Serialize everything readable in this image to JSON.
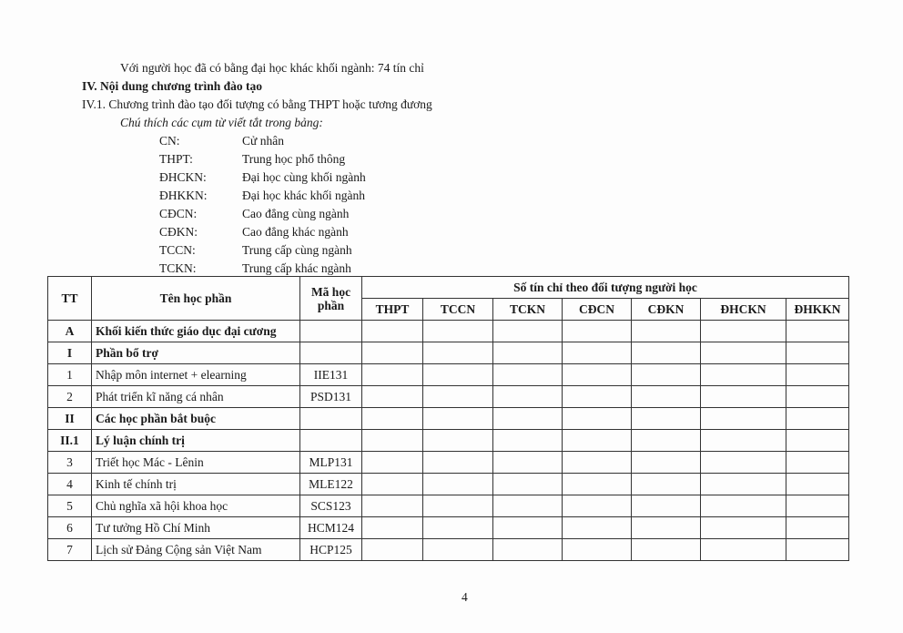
{
  "intro_line": "Với người học đã có bằng đại học khác khối ngành: 74 tín chỉ",
  "section_title": "IV.  Nội dung chương trình đào tạo",
  "subsection_title": "IV.1. Chương trình đào tạo đối tượng có bằng THPT hoặc tương đương",
  "legend_title": "Chú thích các cụm từ viết tắt trong bảng:",
  "legend": [
    {
      "abbr": "CN:",
      "meaning": "Cử nhân"
    },
    {
      "abbr": "THPT:",
      "meaning": "Trung học phổ thông"
    },
    {
      "abbr": "ĐHCKN:",
      "meaning": "Đại học cùng khối ngành"
    },
    {
      "abbr": "ĐHKKN:",
      "meaning": "Đại học khác khối ngành"
    },
    {
      "abbr": "CĐCN:",
      "meaning": "Cao đẳng cùng ngành"
    },
    {
      "abbr": "CĐKN:",
      "meaning": "Cao đẳng khác ngành"
    },
    {
      "abbr": "TCCN:",
      "meaning": "Trung cấp cùng ngành"
    },
    {
      "abbr": "TCKN:",
      "meaning": "Trung cấp khác ngành"
    }
  ],
  "table": {
    "headers": {
      "tt": "TT",
      "name": "Tên học phần",
      "code": "Mã học phần",
      "credits_group": "Số tín chỉ theo đối tượng người học",
      "credit_cols": [
        "THPT",
        "TCCN",
        "TCKN",
        "CĐCN",
        "CĐKN",
        "ĐHCKN",
        "ĐHKKN"
      ]
    },
    "rows": [
      {
        "tt": "A",
        "name": "Khối kiến thức giáo dục đại cương",
        "code": "",
        "bold": true
      },
      {
        "tt": "I",
        "name": "Phần bổ trợ",
        "code": "",
        "bold": true
      },
      {
        "tt": "1",
        "name": "Nhập môn internet + elearning",
        "code": "IIE131",
        "bold": false
      },
      {
        "tt": "2",
        "name": "Phát triển kĩ năng cá nhân",
        "code": "PSD131",
        "bold": false
      },
      {
        "tt": "II",
        "name": "Các học phần bắt buộc",
        "code": "",
        "bold": true
      },
      {
        "tt": "II.1",
        "name": "Lý luận chính trị",
        "code": "",
        "bold": true
      },
      {
        "tt": "3",
        "name": "Triết học Mác - Lênin",
        "code": "MLP131",
        "bold": false
      },
      {
        "tt": "4",
        "name": "Kinh tế chính trị",
        "code": "MLE122",
        "bold": false
      },
      {
        "tt": "5",
        "name": "Chủ nghĩa xã hội khoa học",
        "code": "SCS123",
        "bold": false
      },
      {
        "tt": "6",
        "name": "Tư tưởng Hồ Chí Minh",
        "code": "HCM124",
        "bold": false
      },
      {
        "tt": "7",
        "name": "Lịch sử Đảng Cộng sản Việt Nam",
        "code": "HCP125",
        "bold": false
      }
    ]
  },
  "page_number": "4"
}
